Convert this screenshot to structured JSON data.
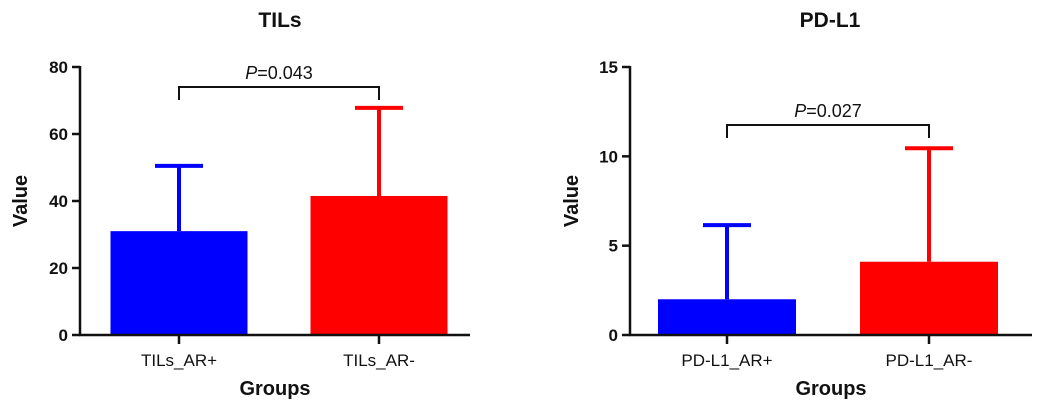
{
  "chart_data": [
    {
      "type": "bar",
      "title": "TILs",
      "xlabel": "Groups",
      "ylabel": "Value",
      "ylim": [
        0,
        80
      ],
      "yticks": [
        0,
        20,
        40,
        60,
        80
      ],
      "categories": [
        "TILs_AR+",
        "TILs_AR-"
      ],
      "values": [
        31,
        41.5
      ],
      "error_upper": [
        50.5,
        67.8
      ],
      "colors": [
        "#0000ff",
        "#ff0000"
      ],
      "annotation": {
        "p_label": "P",
        "p_value": "=0.043"
      },
      "grid": false
    },
    {
      "type": "bar",
      "title": "PD-L1",
      "xlabel": "Groups",
      "ylabel": "Value",
      "ylim": [
        0,
        15
      ],
      "yticks": [
        0,
        5,
        10,
        15
      ],
      "categories": [
        "PD-L1_AR+",
        "PD-L1_AR-"
      ],
      "values": [
        2.0,
        4.1
      ],
      "error_upper": [
        6.15,
        10.45
      ],
      "colors": [
        "#0000ff",
        "#ff0000"
      ],
      "annotation": {
        "p_label": "P",
        "p_value": "=0.027"
      },
      "grid": false
    }
  ]
}
